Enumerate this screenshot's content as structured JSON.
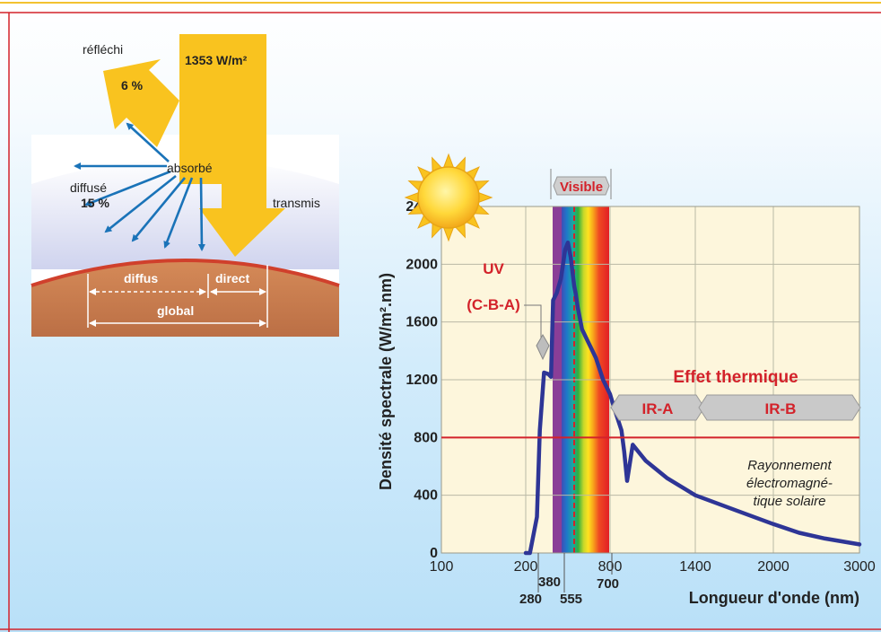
{
  "left_diagram": {
    "incoming": "1353 W/m²",
    "reflected_label": "réfléchi",
    "reflected_pct": "6 %",
    "absorbed_label": "absorbé",
    "diffused_label": "diffusé",
    "diffused_pct": "15 %",
    "transmitted_label": "transmis",
    "diffuse_label": "diffus",
    "direct_label": "direct",
    "global_label": "global"
  },
  "colors": {
    "arrow_yellow": "#f9c31f",
    "ray_blue": "#1a73b8",
    "ground": "#c8784a",
    "ground_edge": "#d0402c",
    "curve": "#2e3596",
    "red_line": "#d3222a",
    "plot_bg": "#fdf6dc"
  },
  "chart_data": {
    "type": "line",
    "ylabel": "Densité spectrale (W/m².nm)",
    "xlabel": "Longueur d'onde (nm)",
    "ylim": [
      0,
      2400
    ],
    "yticks": [
      "0",
      "400",
      "800",
      "1200",
      "1600",
      "2000",
      "2400"
    ],
    "xticks": [
      "100",
      "200",
      "800",
      "1400",
      "2000",
      "3000"
    ],
    "grid": true,
    "reference_line": 800,
    "series": [
      {
        "x": [
          200,
          230,
          280,
          300,
          330,
          360,
          380,
          395,
          420,
          450,
          480,
          500,
          520,
          545,
          555,
          570,
          600,
          650,
          700,
          750,
          800,
          830,
          880,
          900,
          920,
          960,
          1050,
          1200,
          1400,
          1700,
          2000,
          2300,
          2600,
          3000
        ],
        "y": [
          0,
          0,
          250,
          850,
          1250,
          1240,
          1220,
          1750,
          1800,
          1900,
          2100,
          2150,
          2050,
          1850,
          1800,
          1700,
          1550,
          1450,
          1350,
          1200,
          1100,
          1000,
          850,
          700,
          500,
          750,
          640,
          520,
          400,
          300,
          200,
          140,
          100,
          60
        ]
      }
    ],
    "annotations": {
      "uv": "UV",
      "uv_sub": "(C-B-A)",
      "visible": "Visible",
      "thermal": "Effet thermique",
      "ira": "IR-A",
      "irb": "IR-B",
      "radiation": [
        "Rayonnement",
        "électromagné-",
        "tique solaire"
      ],
      "marks": [
        "280",
        "380",
        "555",
        "700"
      ]
    }
  }
}
